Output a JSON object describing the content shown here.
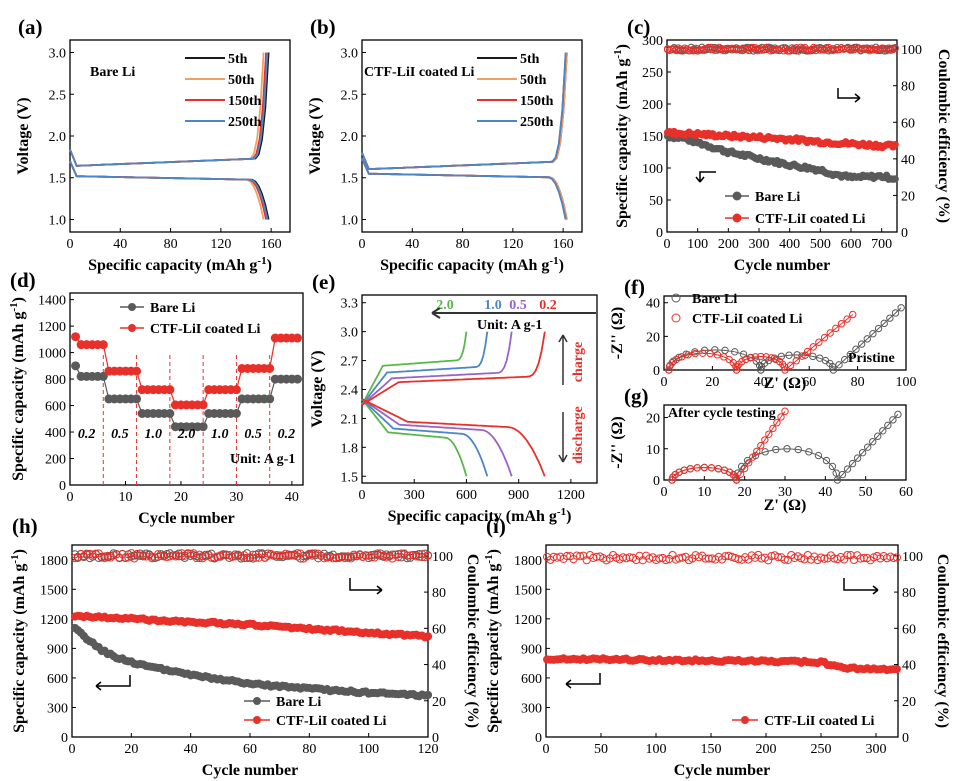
{
  "colors": {
    "black": "#1a1a1a",
    "gray": "#5a5a5a",
    "red": "#e8302a",
    "orange": "#f0a060",
    "blue": "#4a86c8",
    "green": "#59b84a",
    "purple": "#9a63c9",
    "bg": "#ffffff"
  },
  "chart_data": [
    {
      "id": "a",
      "panel_label": "(a)",
      "type": "line",
      "title": "",
      "annotation": "Bare Li",
      "xlabel": "Specific capacity (mAh g-1)",
      "ylabel": "Voltage (V)",
      "xlim": [
        0,
        175
      ],
      "ylim": [
        0.85,
        3.15
      ],
      "xticks": [
        0,
        40,
        80,
        120,
        160
      ],
      "yticks": [
        1.0,
        1.5,
        2.0,
        2.5,
        3.0
      ],
      "ytick_labels": [
        "1.0",
        "1.5",
        "2.0",
        "2.5",
        "3.0"
      ],
      "legend": [
        "5th",
        "50th",
        "150th",
        "250th"
      ],
      "series": [
        {
          "name": "5th",
          "color": "#1a1a1a",
          "capacity": 158
        },
        {
          "name": "50th",
          "color": "#f0a060",
          "capacity": 154
        },
        {
          "name": "150th",
          "color": "#e8302a",
          "capacity": 156
        },
        {
          "name": "250th",
          "color": "#4a86c8",
          "capacity": 157
        }
      ],
      "charge_plateau_v": 1.64,
      "discharge_plateau_v": 1.52
    },
    {
      "id": "b",
      "panel_label": "(b)",
      "type": "line",
      "title": "",
      "annotation": "CTF-LiI coated Li",
      "xlabel": "Specific capacity (mAh g-1)",
      "ylabel": "Voltage (V)",
      "xlim": [
        0,
        175
      ],
      "ylim": [
        0.85,
        3.15
      ],
      "xticks": [
        0,
        40,
        80,
        120,
        160
      ],
      "yticks": [
        1.0,
        1.5,
        2.0,
        2.5,
        3.0
      ],
      "ytick_labels": [
        "1.0",
        "1.5",
        "2.0",
        "2.5",
        "3.0"
      ],
      "legend": [
        "5th",
        "50th",
        "150th",
        "250th"
      ],
      "series": [
        {
          "name": "5th",
          "color": "#1a1a1a",
          "capacity": 163
        },
        {
          "name": "50th",
          "color": "#f0a060",
          "capacity": 163
        },
        {
          "name": "150th",
          "color": "#e8302a",
          "capacity": 162
        },
        {
          "name": "250th",
          "color": "#4a86c8",
          "capacity": 162
        }
      ],
      "charge_plateau_v": 1.6,
      "discharge_plateau_v": 1.55
    },
    {
      "id": "c",
      "panel_label": "(c)",
      "type": "scatter",
      "xlabel": "Cycle number",
      "ylabel": "Specific capacity (mAh g-1)",
      "y2label": "Coulombic efficiency (%)",
      "xlim": [
        0,
        750
      ],
      "ylim": [
        0,
        300
      ],
      "y2lim": [
        0,
        105
      ],
      "xticks": [
        0,
        100,
        200,
        300,
        400,
        500,
        600,
        700
      ],
      "yticks": [
        0,
        50,
        100,
        150,
        200,
        250,
        300
      ],
      "y2ticks": [
        0,
        20,
        40,
        60,
        80,
        100
      ],
      "legend": [
        "Bare Li",
        "CTF-LiI coated Li"
      ],
      "series": [
        {
          "name": "Bare Li",
          "color": "#5a5a5a",
          "cycles": [
            0,
            50,
            100,
            200,
            300,
            400,
            500,
            550,
            600,
            650,
            700,
            740
          ],
          "capacity": [
            150,
            147,
            140,
            125,
            115,
            105,
            97,
            90,
            85,
            86,
            87,
            84
          ],
          "ce": 100
        },
        {
          "name": "CTF-LiI coated Li",
          "color": "#e8302a",
          "cycles": [
            0,
            100,
            200,
            300,
            400,
            500,
            600,
            700,
            740
          ],
          "capacity": [
            155,
            153,
            150,
            148,
            145,
            141,
            138,
            135,
            134
          ],
          "ce": 100
        }
      ]
    },
    {
      "id": "d",
      "panel_label": "(d)",
      "type": "scatter",
      "xlabel": "Cycle number",
      "ylabel": "Specific capacity (mAh g-1)",
      "xlim": [
        0,
        42
      ],
      "ylim": [
        0,
        1450
      ],
      "xticks": [
        0,
        10,
        20,
        30,
        40
      ],
      "yticks": [
        0,
        200,
        400,
        600,
        800,
        1000,
        1200,
        1400
      ],
      "legend": [
        "Bare Li",
        "CTF-LiI coated Li"
      ],
      "rate_labels": [
        "0.2",
        "0.5",
        "1.0",
        "2.0",
        "1.0",
        "0.5",
        "0.2"
      ],
      "unit_label": "Unit: A g-1",
      "series": [
        {
          "name": "Bare Li",
          "color": "#5a5a5a",
          "step_values": [
            820,
            650,
            540,
            440,
            540,
            650,
            800
          ]
        },
        {
          "name": "CTF-LiI coated Li",
          "color": "#e8302a",
          "step_values": [
            1060,
            860,
            720,
            605,
            720,
            880,
            1110
          ]
        }
      ]
    },
    {
      "id": "e",
      "panel_label": "(e)",
      "type": "line",
      "xlabel": "Specific capacity (mAh g-1)",
      "ylabel": "Voltage (V)",
      "xlim": [
        0,
        1350
      ],
      "ylim": [
        1.43,
        3.38
      ],
      "xticks": [
        0,
        300,
        600,
        900,
        1200
      ],
      "yticks": [
        1.5,
        1.8,
        2.1,
        2.4,
        2.7,
        3.0,
        3.3
      ],
      "ytick_labels": [
        "1.5",
        "1.8",
        "2.1",
        "2.4",
        "2.7",
        "3.0",
        "3.3"
      ],
      "rate_labels": [
        "2.0",
        "1.0",
        "0.5",
        "0.2"
      ],
      "unit_label": "Unit: A g-1",
      "charge_label": "charge",
      "discharge_label": "discharge",
      "series": [
        {
          "name": "2.0",
          "color": "#59b84a",
          "capacity": 600,
          "charge_v": 2.55,
          "discharge_v": 1.98
        },
        {
          "name": "1.0",
          "color": "#4a86c8",
          "capacity": 720,
          "charge_v": 2.48,
          "discharge_v": 2.02
        },
        {
          "name": "0.5",
          "color": "#9a63c9",
          "capacity": 860,
          "charge_v": 2.42,
          "discharge_v": 2.06
        },
        {
          "name": "0.2",
          "color": "#e8302a",
          "capacity": 1050,
          "charge_v": 2.38,
          "discharge_v": 2.09
        }
      ]
    },
    {
      "id": "f",
      "panel_label": "(f)",
      "type": "scatter",
      "xlabel": "Z' (Ω)",
      "ylabel": "-Z'' (Ω)",
      "xlim": [
        0,
        100
      ],
      "ylim": [
        0,
        44
      ],
      "xticks": [
        0,
        20,
        40,
        60,
        80,
        100
      ],
      "yticks": [
        0,
        20,
        40
      ],
      "annotation": "Pristine",
      "legend": [
        "Bare Li",
        "CTF-LiI coated Li"
      ],
      "series": [
        {
          "name": "Bare Li",
          "color": "#5a5a5a",
          "r0": 2,
          "semicircles": [
            [
              2,
              40,
              12
            ],
            [
              40,
              70,
              9
            ]
          ],
          "tail_end": [
            98,
            37
          ]
        },
        {
          "name": "CTF-LiI coated Li",
          "color": "#e8302a",
          "r0": 2,
          "semicircles": [
            [
              2,
              30,
              10
            ],
            [
              30,
              50,
              8
            ]
          ],
          "tail_end": [
            78,
            33
          ]
        }
      ]
    },
    {
      "id": "g",
      "panel_label": "(g)",
      "type": "scatter",
      "xlabel": "Z' (Ω)",
      "ylabel": "-Z'' (Ω)",
      "xlim": [
        0,
        60
      ],
      "ylim": [
        0,
        24
      ],
      "xticks": [
        0,
        10,
        20,
        30,
        40,
        50,
        60
      ],
      "yticks": [
        0,
        10,
        20
      ],
      "annotation": "After cycle testing",
      "series": [
        {
          "name": "Bare Li",
          "color": "#5a5a5a",
          "r0": 2,
          "semicircles": [
            [
              2,
              18,
              4
            ],
            [
              18,
              43,
              10
            ]
          ],
          "tail_end": [
            58,
            21
          ]
        },
        {
          "name": "CTF-LiI coated Li",
          "color": "#e8302a",
          "r0": 2,
          "semicircles": [
            [
              2,
              18,
              4
            ]
          ],
          "tail_end": [
            30,
            22
          ]
        }
      ]
    },
    {
      "id": "h",
      "panel_label": "(h)",
      "type": "scatter",
      "xlabel": "Cycle number",
      "ylabel": "Specific capacity (mAh g-1)",
      "y2label": "Coulombic efficiency (%)",
      "xlim": [
        0,
        120
      ],
      "ylim": [
        0,
        1950
      ],
      "y2lim": [
        0,
        106
      ],
      "xticks": [
        0,
        20,
        40,
        60,
        80,
        100,
        120
      ],
      "yticks": [
        0,
        300,
        600,
        900,
        1200,
        1500,
        1800
      ],
      "y2ticks": [
        0,
        20,
        40,
        60,
        80,
        100
      ],
      "legend": [
        "Bare Li",
        "CTF-LiI coated Li"
      ],
      "series": [
        {
          "name": "Bare Li",
          "color": "#5a5a5a",
          "cycles": [
            1,
            5,
            10,
            15,
            20,
            30,
            40,
            60,
            80,
            100,
            120
          ],
          "capacity": [
            1100,
            1000,
            880,
            810,
            760,
            690,
            630,
            540,
            490,
            450,
            420
          ],
          "ce": 100
        },
        {
          "name": "CTF-LiI coated Li",
          "color": "#e8302a",
          "cycles": [
            1,
            20,
            40,
            60,
            80,
            100,
            120
          ],
          "capacity": [
            1230,
            1200,
            1170,
            1140,
            1100,
            1060,
            1020
          ],
          "ce": 100
        }
      ]
    },
    {
      "id": "i",
      "panel_label": "(i)",
      "type": "scatter",
      "xlabel": "Cycle number",
      "ylabel": "Specific capacity (mAh g-1)",
      "y2label": "Coulombic efficiency (%)",
      "xlim": [
        0,
        320
      ],
      "ylim": [
        0,
        1950
      ],
      "y2lim": [
        0,
        106
      ],
      "xticks": [
        0,
        50,
        100,
        150,
        200,
        250,
        300
      ],
      "yticks": [
        0,
        300,
        600,
        900,
        1200,
        1500,
        1800
      ],
      "y2ticks": [
        0,
        20,
        40,
        60,
        80,
        100
      ],
      "legend": [
        "CTF-LiI coated Li"
      ],
      "series": [
        {
          "name": "CTF-LiI coated Li",
          "color": "#e8302a",
          "cycles": [
            1,
            50,
            100,
            150,
            200,
            250,
            270,
            320
          ],
          "capacity": [
            790,
            790,
            780,
            775,
            770,
            760,
            700,
            680
          ],
          "ce": 99
        }
      ]
    }
  ]
}
